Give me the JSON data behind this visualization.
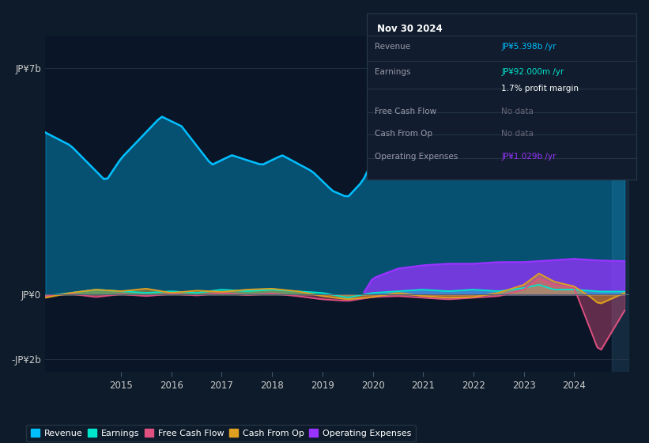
{
  "bg_color": "#0d1b2a",
  "plot_bg_color": "#0a1628",
  "title_box": {
    "date": "Nov 30 2024",
    "revenue": "JP¥5.398b /yr",
    "earnings": "JP¥92.000m /yr",
    "profit_margin": "1.7% profit margin",
    "free_cash_flow": "No data",
    "cash_from_op": "No data",
    "operating_expenses": "JP¥1.029b /yr"
  },
  "colors": {
    "revenue": "#00bfff",
    "earnings": "#00e5cc",
    "free_cash_flow": "#e05080",
    "cash_from_op": "#e0a020",
    "operating_expenses": "#9933ff"
  },
  "legend": [
    "Revenue",
    "Earnings",
    "Free Cash Flow",
    "Cash From Op",
    "Operating Expenses"
  ],
  "xtick_years": [
    2015,
    2016,
    2017,
    2018,
    2019,
    2020,
    2021,
    2022,
    2023,
    2024
  ]
}
